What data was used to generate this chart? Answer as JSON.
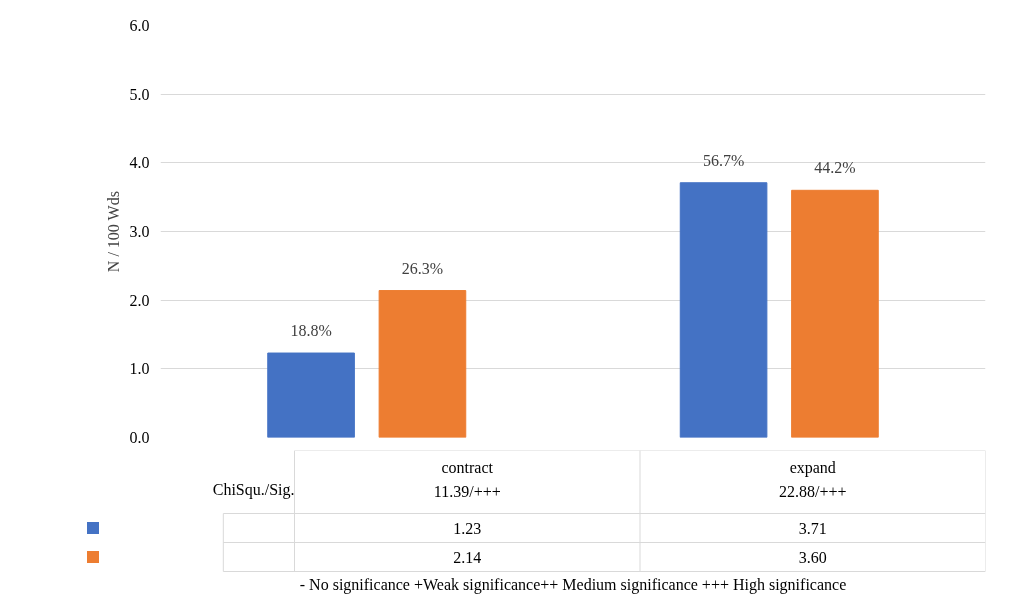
{
  "chart_data": {
    "type": "bar",
    "ylabel": "N / 100 Wds",
    "categories": [
      "contract",
      "expand"
    ],
    "series": [
      {
        "color": "#4472c4",
        "values": [
          1.23,
          3.71
        ],
        "value_labels": [
          "1.23",
          "3.71"
        ]
      },
      {
        "color": "#ed7d31",
        "values": [
          2.14,
          3.6
        ],
        "value_labels": [
          "2.14",
          "3.60"
        ]
      }
    ],
    "ylim": [
      0,
      6
    ],
    "yticks": [
      {
        "value": 0,
        "label": "0.0"
      },
      {
        "value": 1,
        "label": "1.0"
      },
      {
        "value": 2,
        "label": "2.0"
      },
      {
        "value": 3,
        "label": "3.0"
      },
      {
        "value": 4,
        "label": "4.0"
      },
      {
        "value": 5,
        "label": "5.0"
      },
      {
        "value": 6,
        "label": "6.0"
      }
    ],
    "grid": "y",
    "data_labels": true,
    "annotations": [
      "ChiSqu./Sig.",
      "11.39/+++",
      "22.88/+++",
      "- No significance +Weak significance++ Medium significance +++ High significance",
      "18.8%",
      "56.7%",
      "26.3%",
      "44.2%"
    ]
  }
}
